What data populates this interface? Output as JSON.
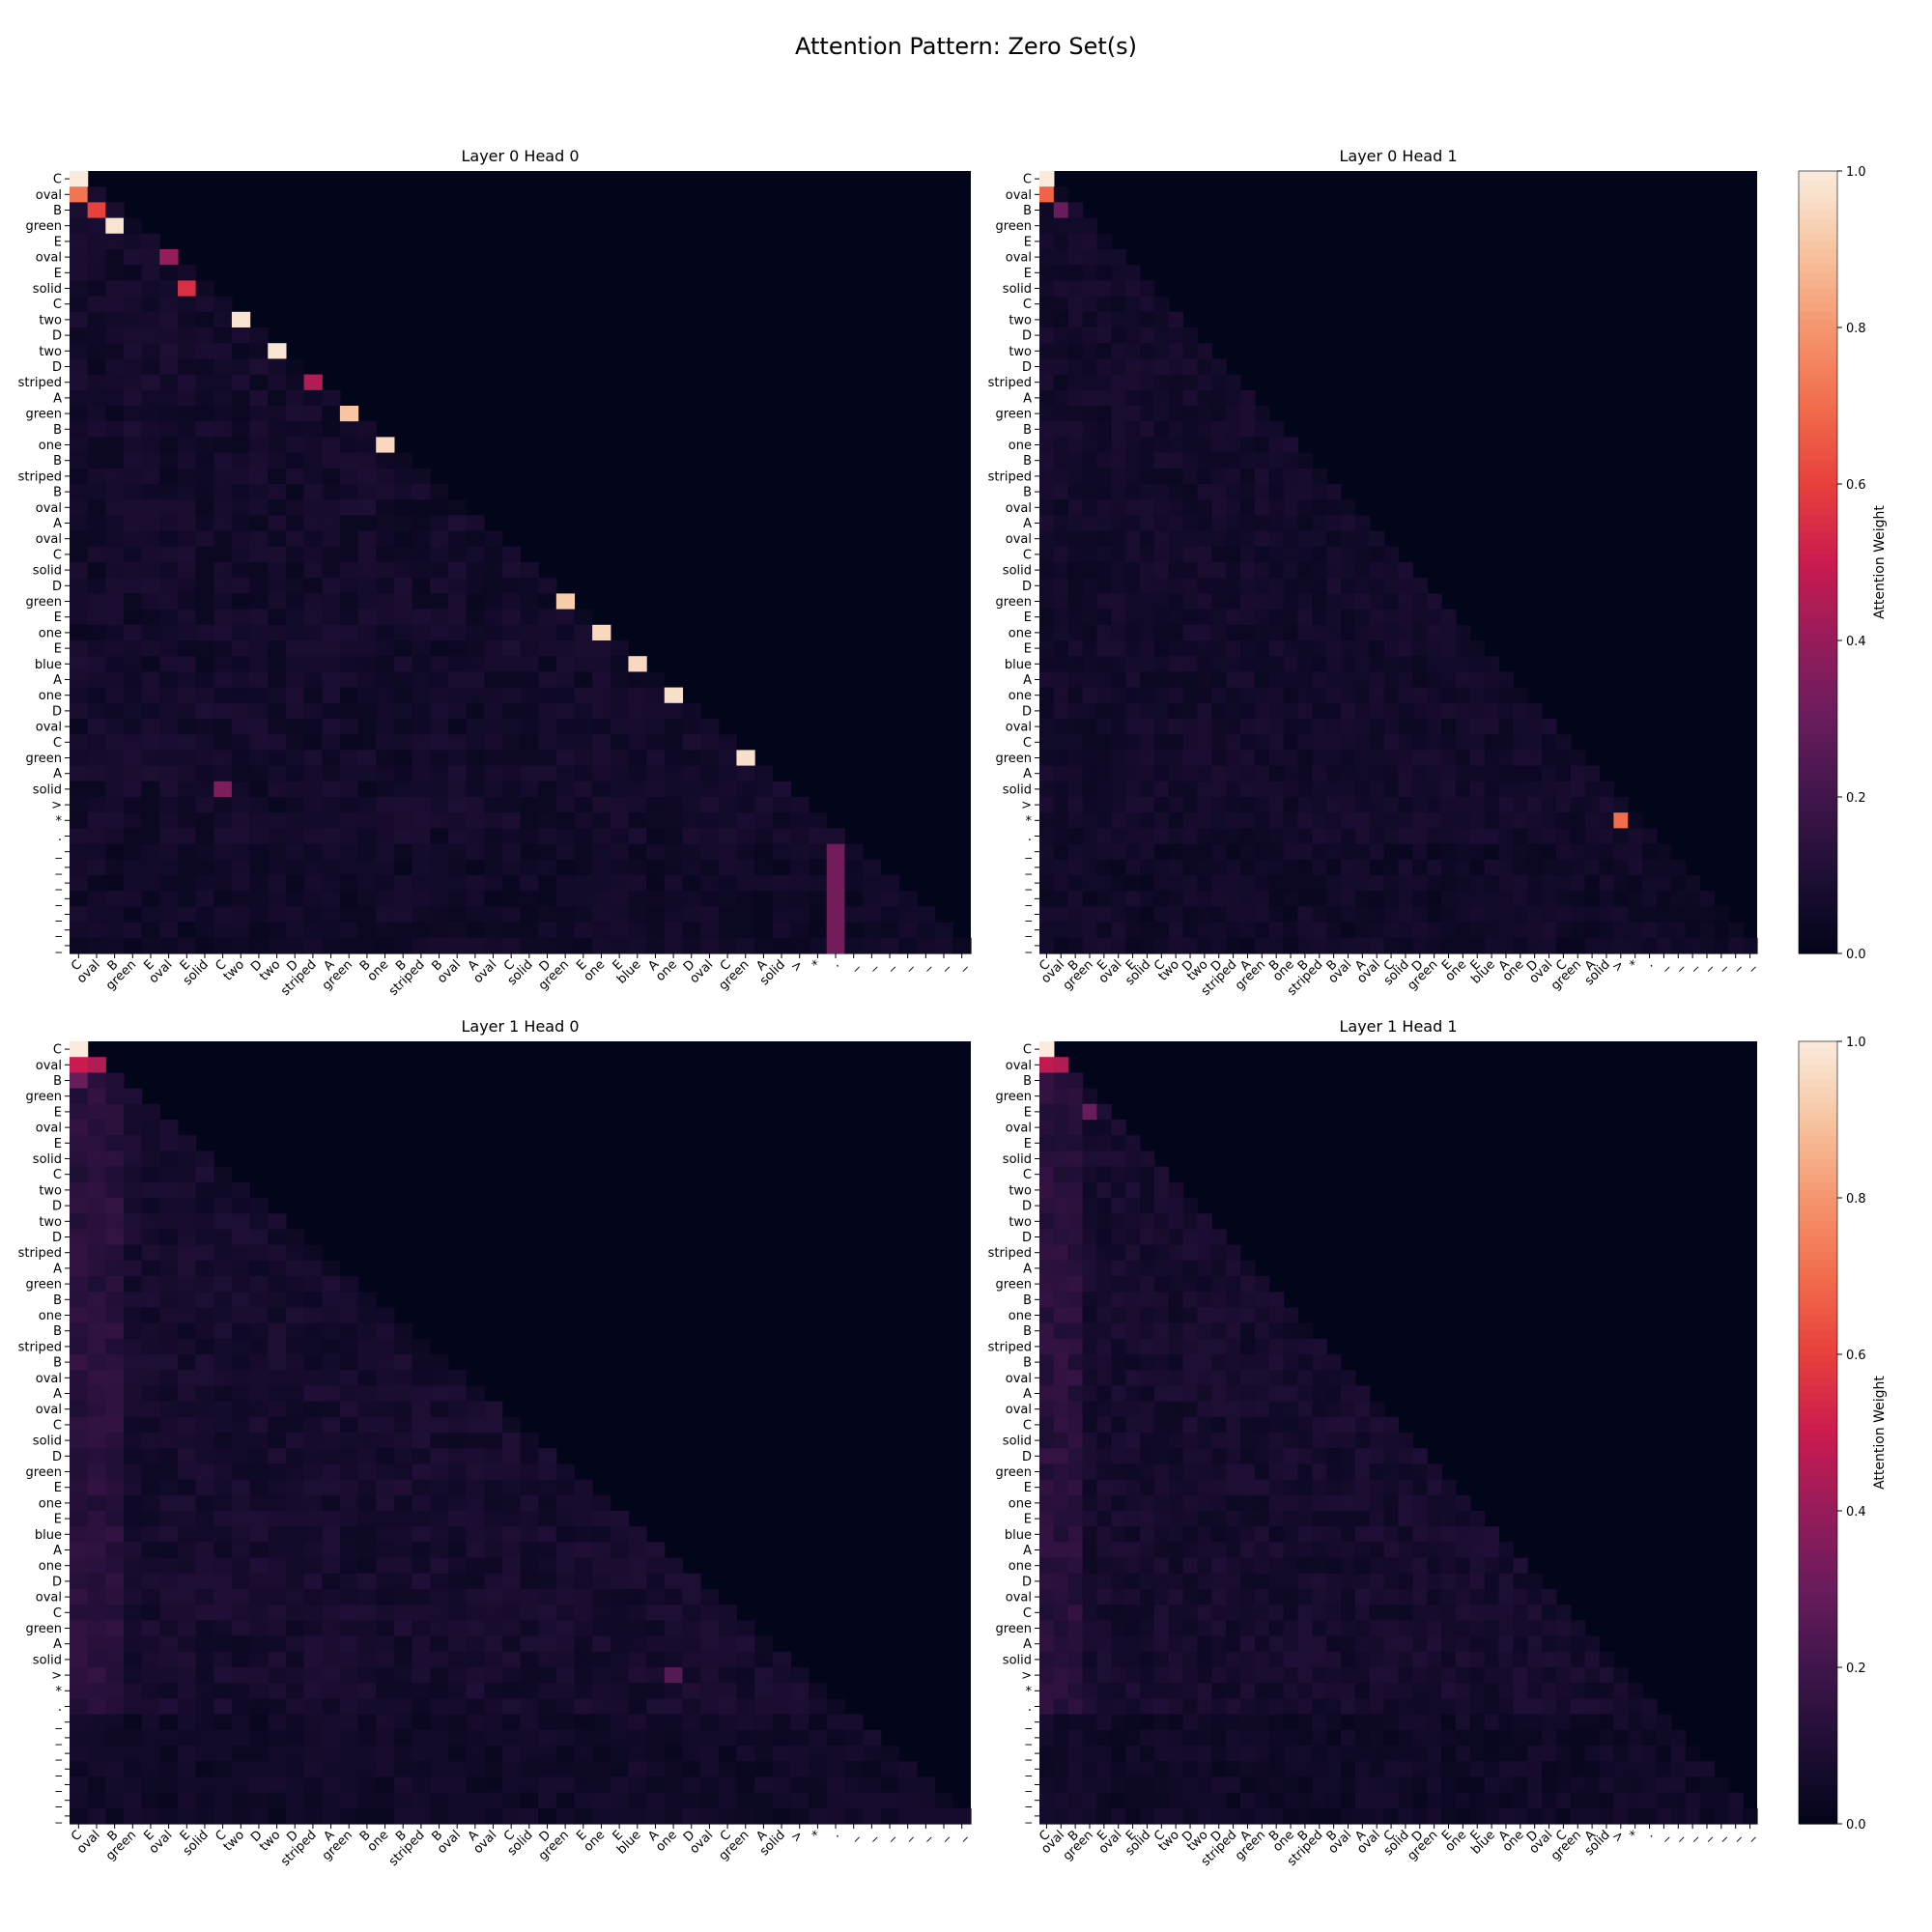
{
  "title": "Attention Pattern: Zero Set(s)",
  "colors": {
    "low": "#03051a",
    "mid": "#cb1b4f",
    "high": "#faebdd",
    "text": "#000000"
  },
  "chart_data": {
    "type": "heatmap",
    "colorbar": {
      "label": "Attention Weight",
      "range": [
        0.0,
        1.0
      ],
      "ticks": [
        "0.0",
        "0.2",
        "0.4",
        "0.6",
        "0.8",
        "1.0"
      ]
    },
    "tokens": [
      "C",
      "oval",
      "B",
      "green",
      "E",
      "oval",
      "E",
      "solid",
      "C",
      "two",
      "D",
      "two",
      "D",
      "striped",
      "A",
      "green",
      "B",
      "one",
      "B",
      "striped",
      "B",
      "oval",
      "A",
      "oval",
      "C",
      "solid",
      "D",
      "green",
      "E",
      "one",
      "E",
      "blue",
      "A",
      "one",
      "D",
      "oval",
      "C",
      "green",
      "A",
      "solid",
      ">",
      "*",
      ".",
      "_",
      "_",
      "_",
      "_",
      "_",
      "_",
      "_"
    ],
    "panels": [
      {
        "title": "Layer 0 Head 0",
        "description": "causal mask; sparse; strong spikes on previous-token/diagonal positions",
        "peaks": [
          [
            1,
            0,
            0.72
          ],
          [
            2,
            1,
            0.6
          ],
          [
            3,
            2,
            0.98
          ],
          [
            5,
            5,
            0.4
          ],
          [
            7,
            6,
            0.55
          ],
          [
            9,
            9,
            0.98
          ],
          [
            11,
            11,
            0.98
          ],
          [
            13,
            13,
            0.45
          ],
          [
            15,
            15,
            0.9
          ],
          [
            17,
            17,
            0.95
          ],
          [
            27,
            27,
            0.92
          ],
          [
            29,
            29,
            0.95
          ],
          [
            31,
            31,
            0.95
          ],
          [
            33,
            33,
            0.97
          ],
          [
            37,
            37,
            0.97
          ],
          [
            39,
            8,
            0.35
          ],
          [
            41,
            41,
            0.05
          ]
        ]
      },
      {
        "title": "Layer 0 Head 1",
        "description": "causal mask; diffuse low weights; spike at (*, >)",
        "peaks": [
          [
            1,
            0,
            0.68
          ],
          [
            2,
            1,
            0.3
          ],
          [
            41,
            40,
            0.7
          ]
        ]
      },
      {
        "title": "Layer 1 Head 0",
        "description": "causal mask; diffuse weights concentrated on early tokens",
        "peaks": [
          [
            1,
            0,
            0.5
          ],
          [
            1,
            1,
            0.45
          ],
          [
            2,
            0,
            0.3
          ],
          [
            40,
            33,
            0.25
          ]
        ]
      },
      {
        "title": "Layer 1 Head 1",
        "description": "causal mask; diffuse weights concentrated on early tokens",
        "peaks": [
          [
            1,
            0,
            0.48
          ],
          [
            1,
            1,
            0.45
          ],
          [
            4,
            3,
            0.3
          ]
        ]
      }
    ]
  }
}
